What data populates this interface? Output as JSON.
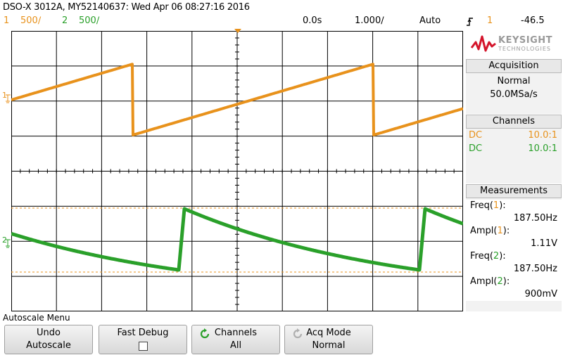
{
  "header": {
    "title": "DSO-X 3012A, MY52140637: Wed Apr 06 08:27:16 2016",
    "ch1_num": "1",
    "ch1_scale": "500∕",
    "ch2_num": "2",
    "ch2_scale": "500∕",
    "time_offset": "0.0s",
    "time_scale": "1.000∕",
    "trigger_mode": "Auto",
    "trigger_slope_icon": "rising-edge-icon",
    "trigger_source": "1",
    "trigger_level": "-46.5"
  },
  "brand": {
    "name": "KEYSIGHT",
    "sub": "TECHNOLOGIES"
  },
  "acquisition": {
    "header": "Acquisition",
    "mode": "Normal",
    "rate": "50.0MSa/s"
  },
  "channels": {
    "header": "Channels",
    "rows": [
      {
        "coupling": "DC",
        "probe": "10.0:1",
        "color": "#e8921c"
      },
      {
        "coupling": "DC",
        "probe": "10.0:1",
        "color": "#2aa02a"
      }
    ]
  },
  "measurements": {
    "header": "Measurements",
    "items": [
      {
        "label_pre": "Freq(",
        "ch": "1",
        "label_post": "):",
        "value": "187.50Hz",
        "color": "#e8921c"
      },
      {
        "label_pre": "Ampl(",
        "ch": "1",
        "label_post": "):",
        "value": "1.11V",
        "color": "#e8921c"
      },
      {
        "label_pre": "Freq(",
        "ch": "2",
        "label_post": "):",
        "value": "187.50Hz",
        "color": "#2aa02a"
      },
      {
        "label_pre": "Ampl(",
        "ch": "2",
        "label_post": "):",
        "value": "900mV",
        "color": "#2aa02a"
      }
    ]
  },
  "menu": {
    "title": "Autoscale Menu",
    "softkeys": [
      {
        "line1": "Undo",
        "line2": "Autoscale"
      },
      {
        "line1": "Fast Debug",
        "line2": ""
      },
      {
        "line1": "Channels",
        "line2": "All"
      },
      {
        "line1": "Acq Mode",
        "line2": "Normal"
      }
    ]
  },
  "colors": {
    "ch1": "#e8921c",
    "ch2": "#2aa02a",
    "grid": "#000000"
  },
  "waveforms": {
    "ch1": {
      "type": "sawtooth",
      "frequency_hz": 187.5,
      "amplitude_v": 1.11
    },
    "ch2": {
      "type": "rc-decay",
      "frequency_hz": 187.5,
      "amplitude_v": 0.9
    }
  }
}
